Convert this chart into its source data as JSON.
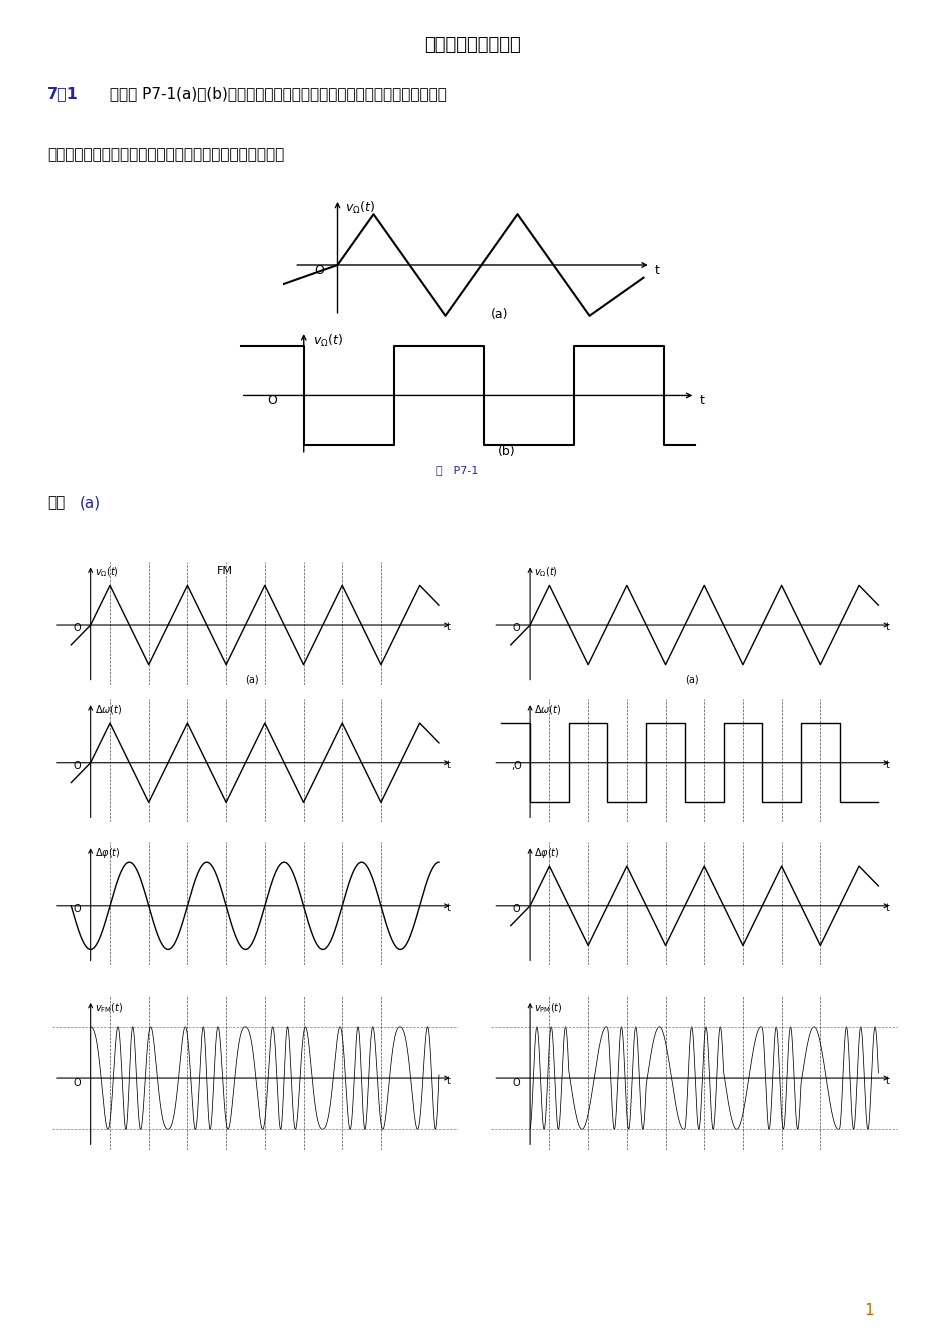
{
  "title": "第七章习题参考答案",
  "problem_bold": "7－1",
  "problem_rest1": " 采用图 P7-1(a)、(b)所示调制信号进行角度调制时，试分别画出调频波和调",
  "problem_rest2": "相波的瞬时频率与瞬时相位变化波形图及已调波的波形图。",
  "fig_caption": "图 P7-1",
  "sol_bold": "解：",
  "sol_rest": "(a)",
  "page_num": "1",
  "bg_color": "#ffffff",
  "text_color": "#000000",
  "blue_color": "#2222aa",
  "orange_color": "#cc6600"
}
